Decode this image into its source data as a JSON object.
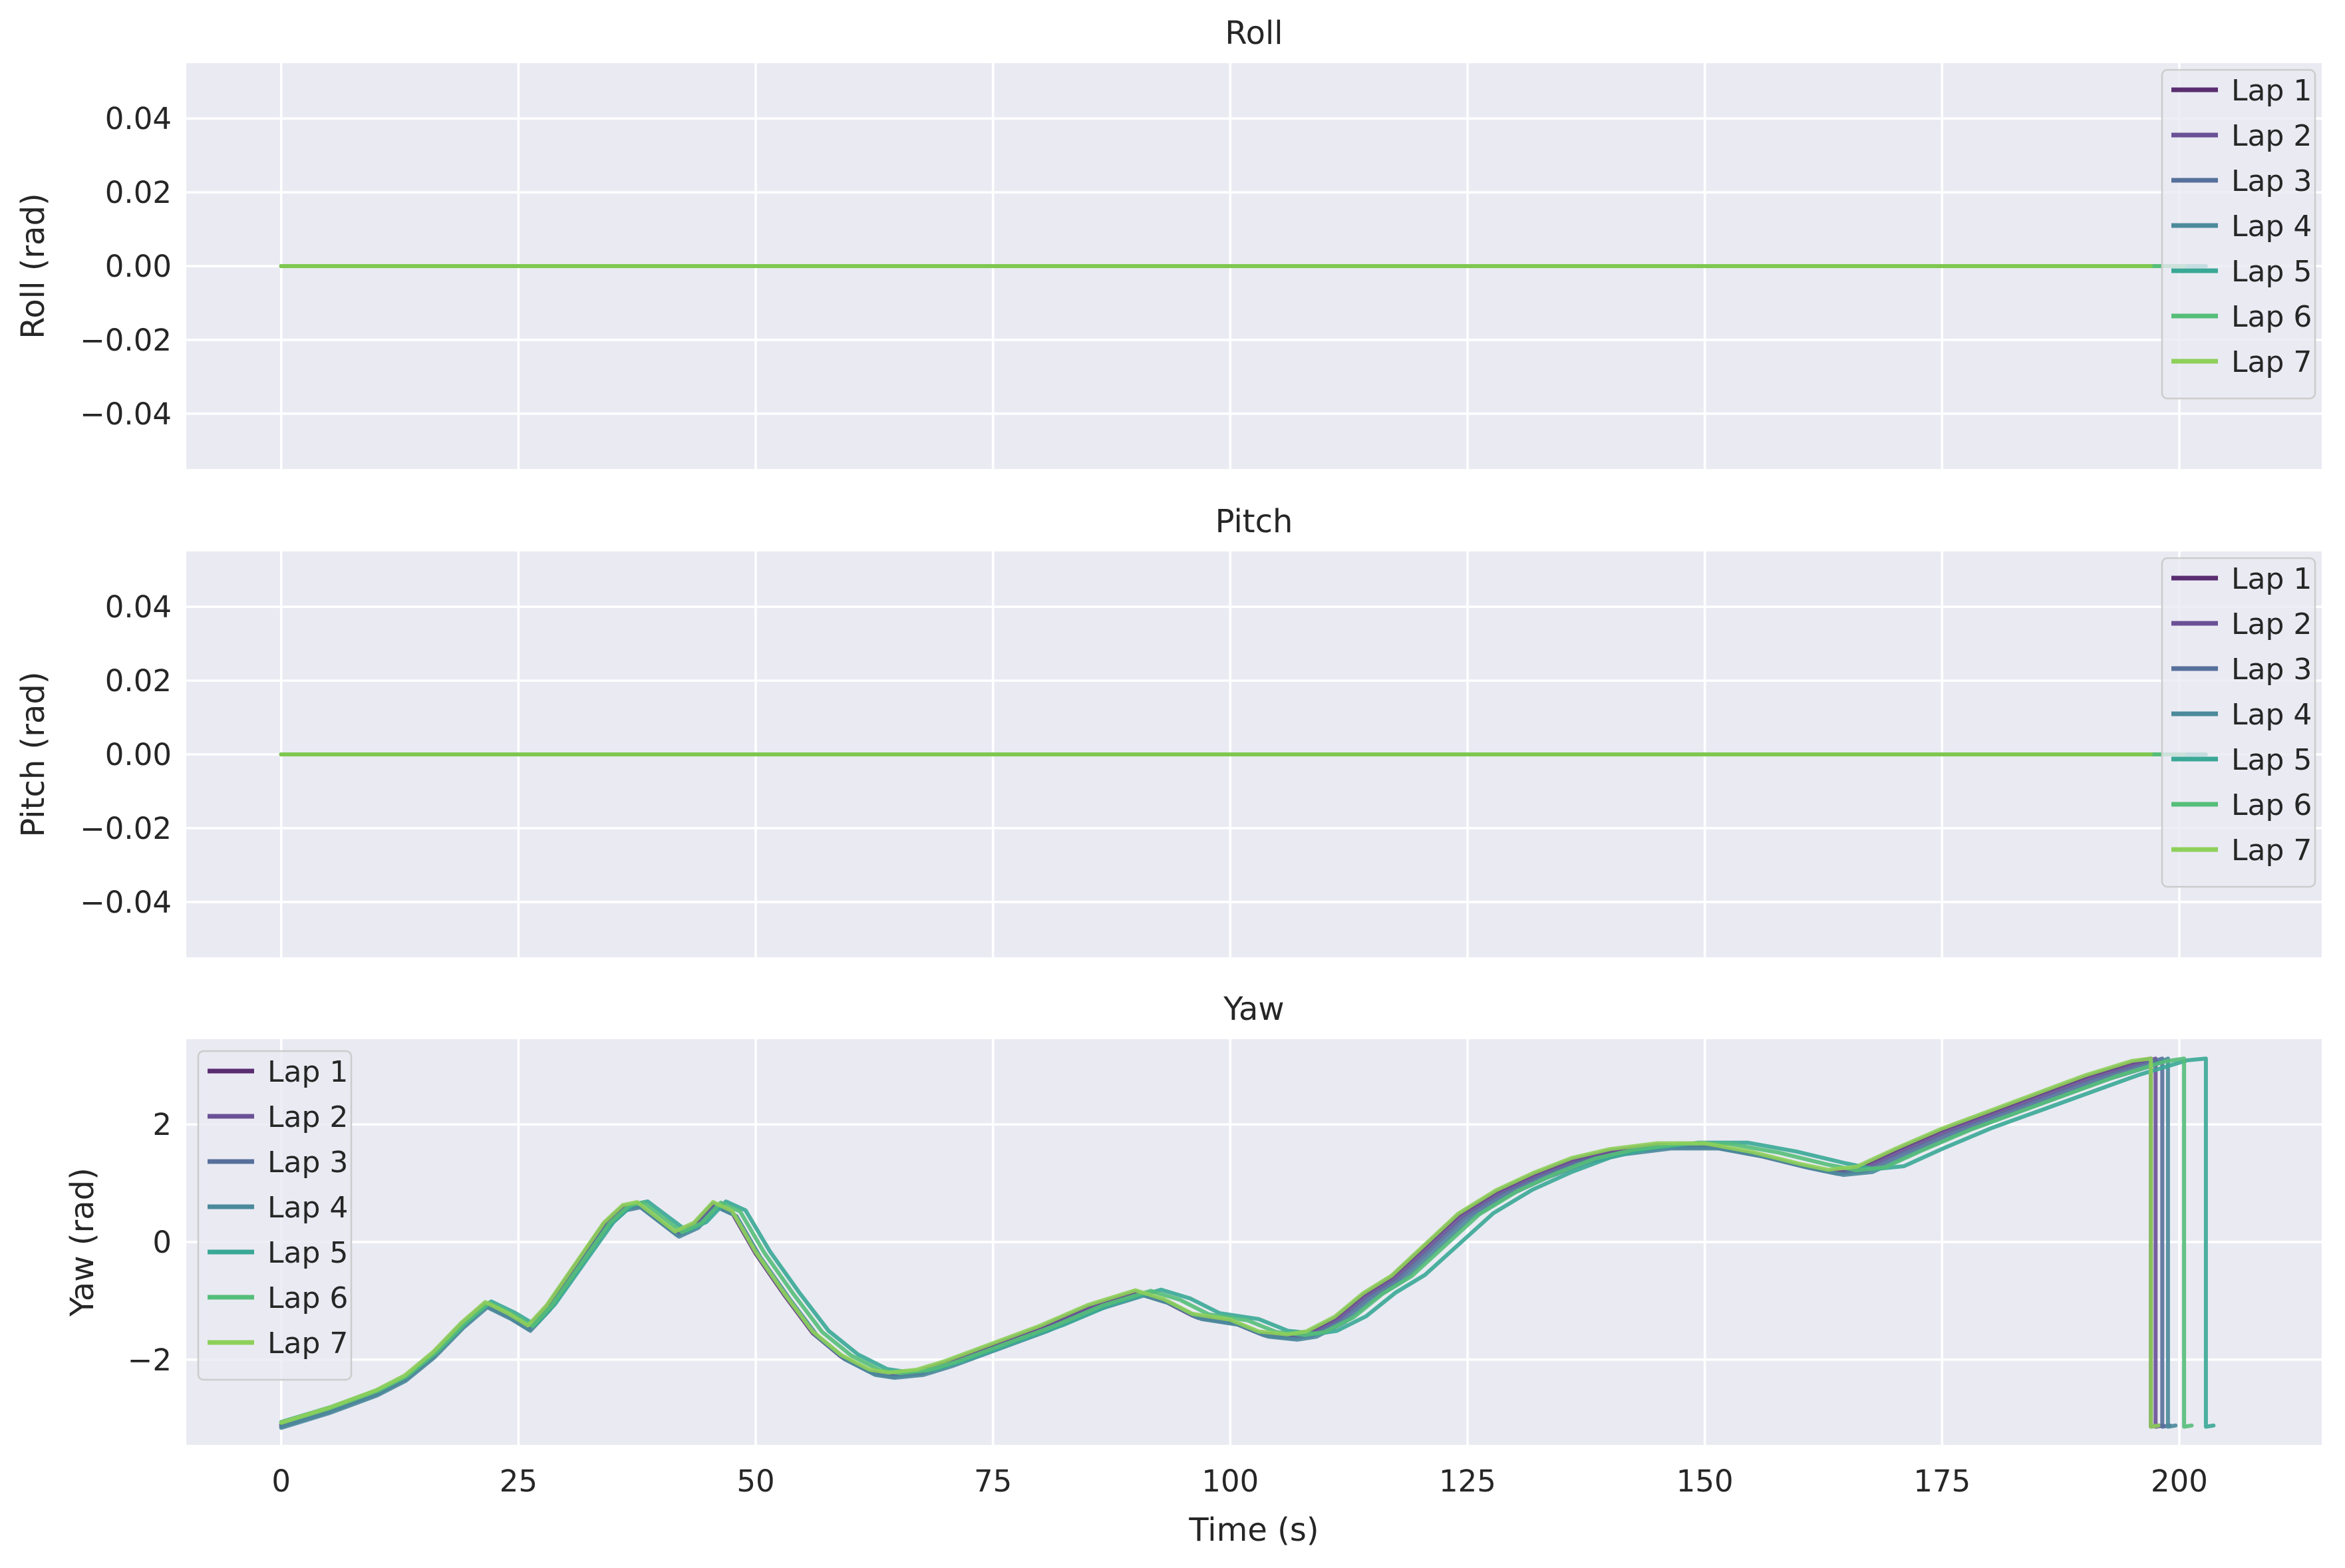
{
  "chart_data": [
    {
      "type": "line",
      "title": "Roll",
      "xlabel": "",
      "ylabel": "Roll (rad)",
      "xlim": [
        -10,
        215
      ],
      "ylim": [
        -0.055,
        0.055
      ],
      "x_ticks": [
        0,
        25,
        50,
        75,
        100,
        125,
        150,
        175,
        200
      ],
      "x_tick_labels_visible": false,
      "y_ticks": [
        0.04,
        0.02,
        0.0,
        -0.02,
        -0.04
      ],
      "y_tick_labels": [
        "0.04",
        "0.02",
        "0.00",
        "−0.02",
        "−0.04"
      ],
      "grid": true,
      "legend": "top-right",
      "series": [
        {
          "name": "Lap 1",
          "x": [
            0,
            197.0
          ],
          "values": [
            0,
            0
          ]
        },
        {
          "name": "Lap 2",
          "x": [
            0,
            197.5
          ],
          "values": [
            0,
            0
          ]
        },
        {
          "name": "Lap 3",
          "x": [
            0,
            198.2
          ],
          "values": [
            0,
            0
          ]
        },
        {
          "name": "Lap 4",
          "x": [
            0,
            198.8
          ],
          "values": [
            0,
            0
          ]
        },
        {
          "name": "Lap 5",
          "x": [
            0,
            202.8
          ],
          "values": [
            0,
            0
          ]
        },
        {
          "name": "Lap 6",
          "x": [
            0,
            200.5
          ],
          "values": [
            0,
            0
          ]
        },
        {
          "name": "Lap 7",
          "x": [
            0,
            197.0
          ],
          "values": [
            0,
            0
          ]
        }
      ]
    },
    {
      "type": "line",
      "title": "Pitch",
      "xlabel": "",
      "ylabel": "Pitch (rad)",
      "xlim": [
        -10,
        215
      ],
      "ylim": [
        -0.055,
        0.055
      ],
      "x_ticks": [
        0,
        25,
        50,
        75,
        100,
        125,
        150,
        175,
        200
      ],
      "x_tick_labels_visible": false,
      "y_ticks": [
        0.04,
        0.02,
        0.0,
        -0.02,
        -0.04
      ],
      "y_tick_labels": [
        "0.04",
        "0.02",
        "0.00",
        "−0.02",
        "−0.04"
      ],
      "grid": true,
      "legend": "top-right",
      "series": [
        {
          "name": "Lap 1",
          "x": [
            0,
            197.0
          ],
          "values": [
            0,
            0
          ]
        },
        {
          "name": "Lap 2",
          "x": [
            0,
            197.5
          ],
          "values": [
            0,
            0
          ]
        },
        {
          "name": "Lap 3",
          "x": [
            0,
            198.2
          ],
          "values": [
            0,
            0
          ]
        },
        {
          "name": "Lap 4",
          "x": [
            0,
            198.8
          ],
          "values": [
            0,
            0
          ]
        },
        {
          "name": "Lap 5",
          "x": [
            0,
            202.8
          ],
          "values": [
            0,
            0
          ]
        },
        {
          "name": "Lap 6",
          "x": [
            0,
            200.5
          ],
          "values": [
            0,
            0
          ]
        },
        {
          "name": "Lap 7",
          "x": [
            0,
            197.0
          ],
          "values": [
            0,
            0
          ]
        }
      ]
    },
    {
      "type": "line",
      "title": "Yaw",
      "xlabel": "Time (s)",
      "ylabel": "Yaw (rad)",
      "xlim": [
        -10,
        215
      ],
      "ylim": [
        -3.45,
        3.45
      ],
      "x_ticks": [
        0,
        25,
        50,
        75,
        100,
        125,
        150,
        175,
        200
      ],
      "x_tick_labels": [
        "0",
        "25",
        "50",
        "75",
        "100",
        "125",
        "150",
        "175",
        "200"
      ],
      "y_ticks": [
        2,
        0,
        -2
      ],
      "y_tick_labels": [
        "2",
        "0",
        "−2"
      ],
      "grid": true,
      "legend": "top-left",
      "base_profile": {
        "t": [
          0,
          5,
          10,
          13,
          16,
          19,
          21.5,
          24,
          26,
          28,
          31,
          34,
          36,
          37.5,
          39.5,
          41.5,
          43.5,
          45.5,
          47.5,
          50,
          53,
          56,
          59,
          62,
          64,
          67,
          70,
          75,
          80,
          85,
          90,
          93,
          96,
          100,
          103,
          106,
          108,
          111,
          114,
          117,
          120,
          124,
          128,
          132,
          136,
          140,
          145,
          150,
          155,
          160,
          163,
          166,
          170,
          175,
          180,
          185,
          190,
          195
        ],
        "yaw": [
          -3.1,
          -2.85,
          -2.55,
          -2.3,
          -1.9,
          -1.4,
          -1.05,
          -1.25,
          -1.45,
          -1.1,
          -0.4,
          0.3,
          0.6,
          0.65,
          0.4,
          0.15,
          0.3,
          0.65,
          0.5,
          -0.2,
          -0.9,
          -1.55,
          -1.95,
          -2.2,
          -2.25,
          -2.2,
          -2.05,
          -1.75,
          -1.45,
          -1.1,
          -0.85,
          -1.0,
          -1.25,
          -1.35,
          -1.55,
          -1.6,
          -1.55,
          -1.3,
          -0.9,
          -0.6,
          -0.15,
          0.45,
          0.85,
          1.15,
          1.4,
          1.55,
          1.65,
          1.65,
          1.5,
          1.3,
          1.2,
          1.25,
          1.55,
          1.9,
          2.2,
          2.5,
          2.8,
          3.05
        ]
      },
      "series": [
        {
          "name": "Lap 1",
          "color": "#5a2d70",
          "time_scale": 1.0,
          "yaw_offset": 0.0,
          "wrap_time": 197.0
        },
        {
          "name": "Lap 2",
          "color": "#6a5196",
          "time_scale": 1.003,
          "yaw_offset": -0.02,
          "wrap_time": 197.5
        },
        {
          "name": "Lap 3",
          "color": "#56709b",
          "time_scale": 1.006,
          "yaw_offset": -0.04,
          "wrap_time": 198.2
        },
        {
          "name": "Lap 4",
          "color": "#4b8a9b",
          "time_scale": 1.01,
          "yaw_offset": -0.06,
          "wrap_time": 198.8
        },
        {
          "name": "Lap 5",
          "color": "#3aa896",
          "time_scale": 1.03,
          "yaw_offset": 0.04,
          "wrap_time": 202.8
        },
        {
          "name": "Lap 6",
          "color": "#55be79",
          "time_scale": 1.018,
          "yaw_offset": 0.02,
          "wrap_time": 200.5
        },
        {
          "name": "Lap 7",
          "color": "#8ed05a",
          "time_scale": 1.0,
          "yaw_offset": 0.03,
          "wrap_time": 197.0
        }
      ]
    }
  ],
  "series_colors": [
    "#5a2d70",
    "#6a5196",
    "#56709b",
    "#4b8a9b",
    "#3aa896",
    "#55be79",
    "#8ed05a"
  ],
  "flat_line_color": "#7ec850"
}
